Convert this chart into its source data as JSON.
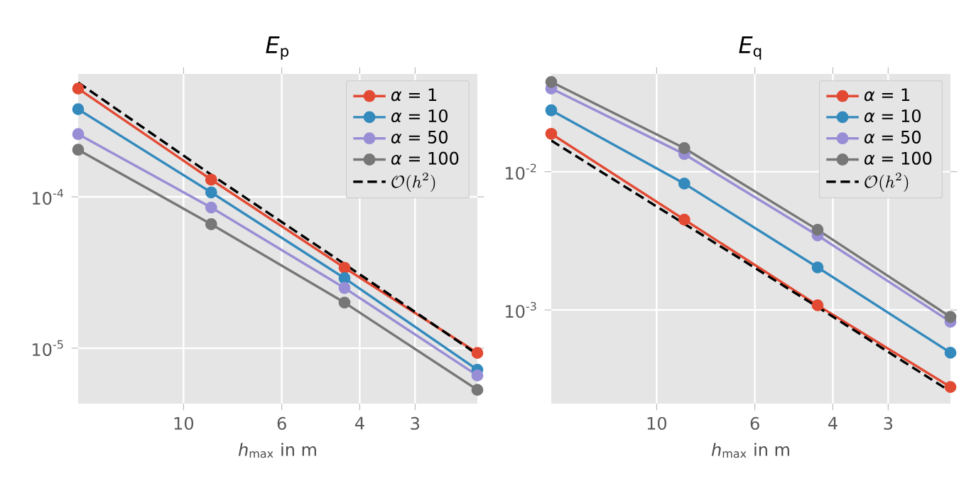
{
  "chart_data": [
    {
      "type": "line",
      "title": "*E*$_{p}$",
      "xlabel": "*h*$_{max}$ in m",
      "log": "xy",
      "grid": true,
      "legend": "top right",
      "marker": "circle",
      "x": [
        17.3,
        8.66,
        4.33,
        2.17
      ],
      "xlim": [
        17.3,
        2.17
      ],
      "xticks": [
        10,
        6,
        4,
        3
      ],
      "ylim": [
        4.3e-06,
        0.00065
      ],
      "yticks": [
        {
          "value": 0.0001,
          "label": "10$^{-4}$"
        },
        {
          "value": 1e-05,
          "label": "10$^{-5}$"
        }
      ],
      "series": [
        {
          "name": "*α* = 1",
          "color": "#e24a33",
          "values": [
            0.00052,
            0.00013,
            3.4e-05,
            9.3e-06
          ]
        },
        {
          "name": "*α* = 10",
          "color": "#348abd",
          "values": [
            0.00038,
            0.000107,
            2.9e-05,
            7.2e-06
          ]
        },
        {
          "name": "*α* = 50",
          "color": "#988ed5",
          "values": [
            0.00026,
            8.5e-05,
            2.5e-05,
            6.6e-06
          ]
        },
        {
          "name": "*α* = 100",
          "color": "#777777",
          "values": [
            0.000205,
            6.6e-05,
            2e-05,
            5.3e-06
          ]
        },
        {
          "name": "\\mathcal{O}(h^2)",
          "color": "#000000",
          "marker": "none",
          "line_style": "dashed",
          "values": [
            0.00057,
            0.00014,
            3.6e-05,
            9.1e-06
          ]
        }
      ]
    },
    {
      "type": "line",
      "title": "*E*$_{q}$",
      "xlabel": "*h*$_{max}$ in m",
      "log": "xy",
      "grid": true,
      "legend": "top right",
      "marker": "circle",
      "x": [
        17.3,
        8.66,
        4.33,
        2.17
      ],
      "xlim": [
        17.3,
        2.17
      ],
      "xticks": [
        10,
        6,
        4,
        3
      ],
      "ylim": [
        0.00021,
        0.051
      ],
      "yticks": [
        {
          "value": 0.01,
          "label": "10$^{-2}$"
        },
        {
          "value": 0.001,
          "label": "10$^{-3}$"
        }
      ],
      "series": [
        {
          "name": "*α* = 1",
          "color": "#e24a33",
          "values": [
            0.0188,
            0.0045,
            0.00108,
            0.000277
          ]
        },
        {
          "name": "*α* = 10",
          "color": "#348abd",
          "values": [
            0.0278,
            0.0082,
            0.00203,
            0.00049
          ]
        },
        {
          "name": "*α* = 50",
          "color": "#988ed5",
          "values": [
            0.04,
            0.0134,
            0.00346,
            0.00082
          ]
        },
        {
          "name": "*α* = 100",
          "color": "#777777",
          "values": [
            0.0446,
            0.0148,
            0.0038,
            0.00089
          ]
        },
        {
          "name": "\\mathcal{O}(h^2)",
          "color": "#000000",
          "marker": "none",
          "line_style": "dashed",
          "values": [
            0.0168,
            0.0042,
            0.00105,
            0.000257
          ]
        }
      ]
    }
  ]
}
